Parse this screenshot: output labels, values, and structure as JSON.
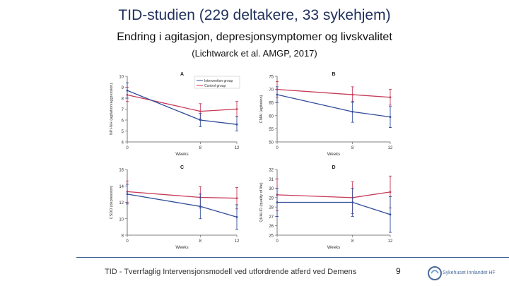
{
  "title": "TID-studien (229 deltakere, 33 sykehjem)",
  "subtitle": "Endring i agitasjon, depresjonsymptomer og livskvalitet",
  "citation": "(Lichtwarck et al. AMGP, 2017)",
  "footer": {
    "text": "TID - Tverrfaglig Intervensjonsmodell ved utfordrende atferd ved Demens",
    "page_number": "9",
    "logo_text": "Sykehuset Innlandet HF"
  },
  "colors": {
    "intervention": "#2f4c99",
    "control": "#c63a57",
    "axis": "#555555"
  },
  "legend": [
    "Intervention group",
    "Control group"
  ],
  "chart_data": [
    {
      "type": "line",
      "panel": "A",
      "xlabel": "Weeks",
      "ylabel": "NPI-NH (agitation/aggression)",
      "x": [
        0,
        8,
        12
      ],
      "xticks": [
        0,
        8,
        12
      ],
      "ylim": [
        4,
        10
      ],
      "yticks": [
        4,
        5,
        6,
        7,
        8,
        9,
        10
      ],
      "series": [
        {
          "name": "Intervention group",
          "values": [
            8.7,
            6.0,
            5.6
          ],
          "lower": [
            8.0,
            5.4,
            5.0
          ],
          "upper": [
            9.4,
            6.6,
            6.3
          ]
        },
        {
          "name": "Control group",
          "values": [
            8.3,
            6.8,
            7.0
          ],
          "lower": [
            7.7,
            6.1,
            6.3
          ],
          "upper": [
            9.0,
            7.5,
            7.7
          ]
        }
      ]
    },
    {
      "type": "line",
      "panel": "B",
      "xlabel": "Weeks",
      "ylabel": "CMAI (agitation)",
      "x": [
        0,
        8,
        12
      ],
      "xticks": [
        0,
        8,
        12
      ],
      "ylim": [
        50,
        75
      ],
      "yticks": [
        50,
        55,
        60,
        65,
        70,
        75
      ],
      "series": [
        {
          "name": "Intervention group",
          "values": [
            68.0,
            61.5,
            59.5
          ],
          "lower": [
            65.0,
            57.5,
            55.5
          ],
          "upper": [
            71.0,
            65.5,
            63.5
          ]
        },
        {
          "name": "Control group",
          "values": [
            70.0,
            68.0,
            67.0
          ],
          "lower": [
            67.0,
            65.0,
            64.0
          ],
          "upper": [
            73.0,
            71.0,
            70.0
          ]
        }
      ]
    },
    {
      "type": "line",
      "panel": "C",
      "xlabel": "Weeks",
      "ylabel": "CSDD (depression)",
      "x": [
        0,
        8,
        12
      ],
      "xticks": [
        0,
        8,
        12
      ],
      "ylim": [
        8,
        16
      ],
      "yticks": [
        8,
        10,
        12,
        14,
        16
      ],
      "series": [
        {
          "name": "Intervention group",
          "values": [
            13.0,
            11.5,
            10.2
          ],
          "lower": [
            11.8,
            10.0,
            8.7
          ],
          "upper": [
            14.2,
            13.0,
            11.7
          ]
        },
        {
          "name": "Control group",
          "values": [
            13.3,
            12.6,
            12.5
          ],
          "lower": [
            12.0,
            11.3,
            11.2
          ],
          "upper": [
            14.6,
            13.9,
            13.8
          ]
        }
      ]
    },
    {
      "type": "line",
      "panel": "D",
      "xlabel": "Weeks",
      "ylabel": "QUALID (quality of life)",
      "x": [
        0,
        8,
        12
      ],
      "xticks": [
        0,
        8,
        12
      ],
      "ylim": [
        25,
        32
      ],
      "yticks": [
        25,
        26,
        27,
        28,
        29,
        30,
        31,
        32
      ],
      "series": [
        {
          "name": "Intervention group",
          "values": [
            28.5,
            28.5,
            27.2
          ],
          "lower": [
            27.0,
            27.0,
            25.3
          ],
          "upper": [
            30.0,
            30.0,
            29.1
          ]
        },
        {
          "name": "Control group",
          "values": [
            29.3,
            29.0,
            29.6
          ],
          "lower": [
            27.6,
            27.3,
            27.9
          ],
          "upper": [
            31.0,
            30.7,
            31.3
          ]
        }
      ]
    }
  ]
}
